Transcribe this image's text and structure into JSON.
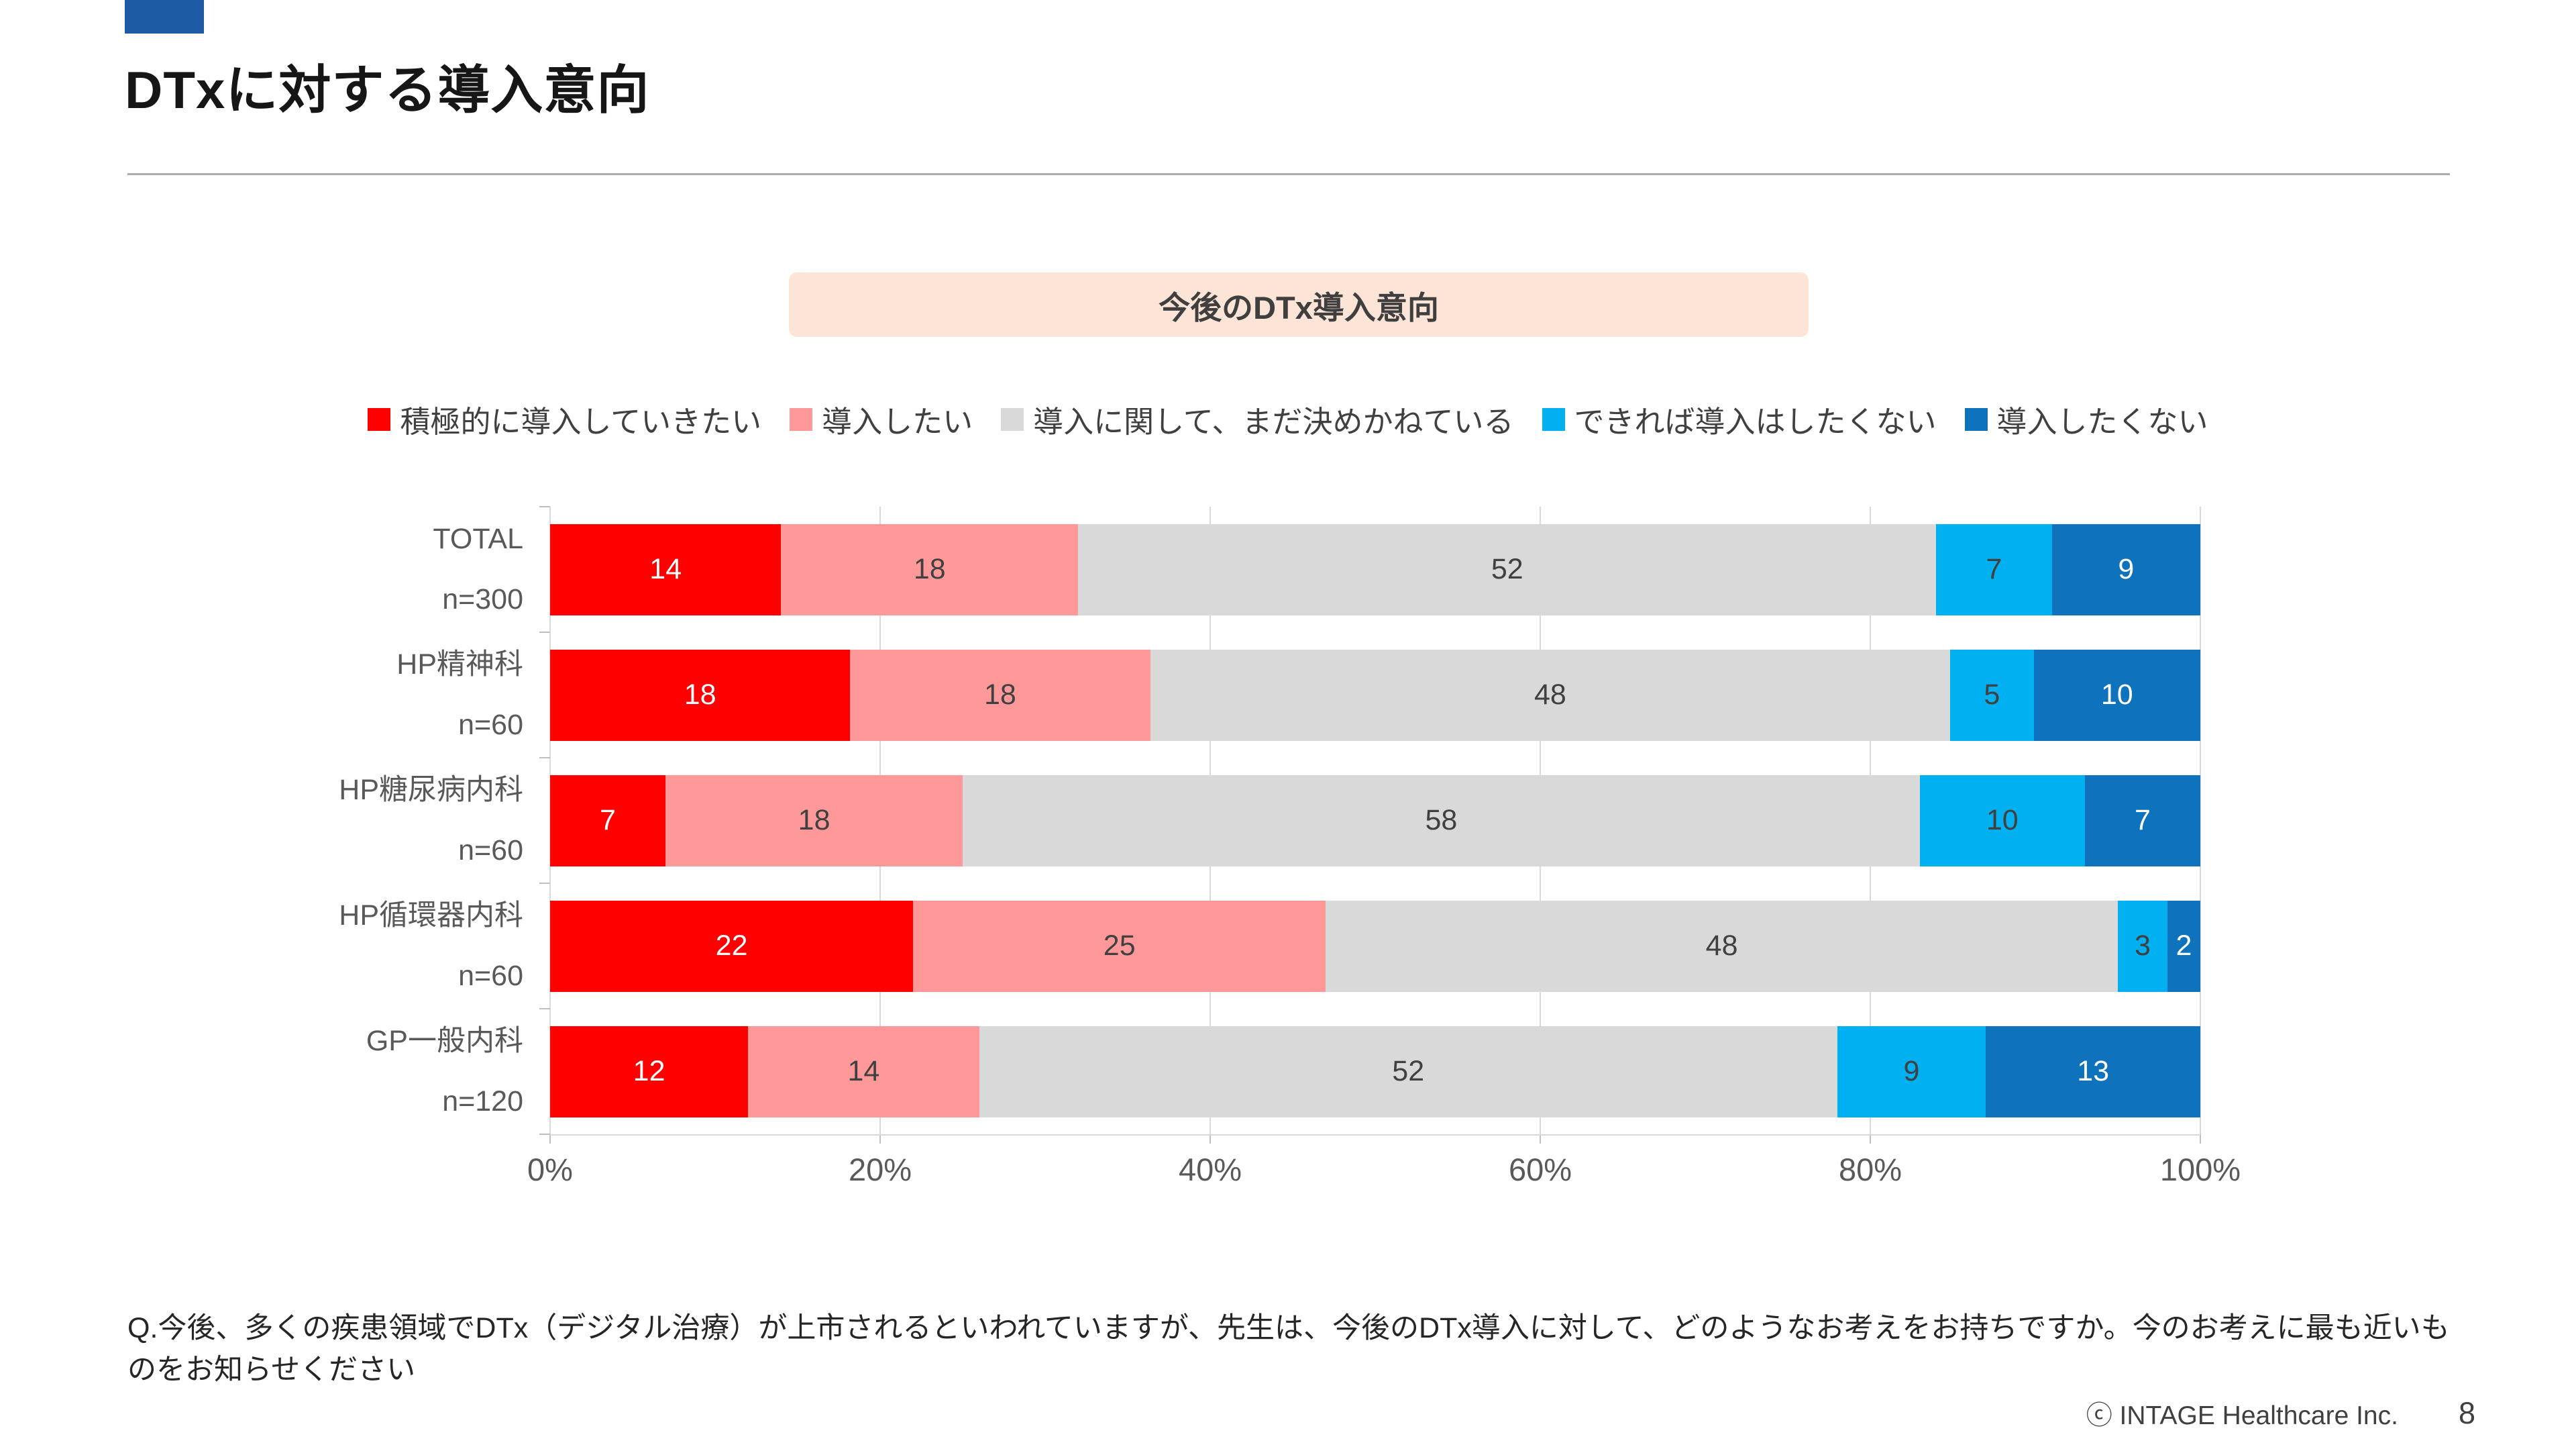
{
  "slide": {
    "title": "DTxに対する導入意向",
    "badge": "今後のDTx導入意向",
    "question": "Q.今後、多くの疾患領域でDTx（デジタル治療）が上市されるといわれていますが、先生は、今後のDTx導入に対して、どのようなお考えをお持ちですか。今のお考えに最も近いものをお知らせください",
    "copyright": "ⓒ INTAGE Healthcare Inc.",
    "page_number": "8"
  },
  "colors": {
    "accent_square": "#1D5BA4",
    "badge_background": "#FCE4D6",
    "gridline": "#D9D9D9",
    "axis_text": "#595959",
    "legend_text": "#404040"
  },
  "chart_data": {
    "type": "bar",
    "orientation": "horizontal",
    "stacked": true,
    "title": "今後のDTx導入意向",
    "xlim": [
      0,
      100
    ],
    "x_tick_labels": [
      "0%",
      "20%",
      "40%",
      "60%",
      "80%",
      "100%"
    ],
    "grid": true,
    "legend_position": "top",
    "categories": [
      {
        "label": "TOTAL",
        "n": "n=300"
      },
      {
        "label": "HP精神科",
        "n": "n=60"
      },
      {
        "label": "HP糖尿病内科",
        "n": "n=60"
      },
      {
        "label": "HP循環器内科",
        "n": "n=60"
      },
      {
        "label": "GP一般内科",
        "n": "n=120"
      }
    ],
    "series": [
      {
        "name": "積極的に導入していきたい",
        "color": "#FF0000",
        "value_label_color": "#FFFFFF",
        "values": [
          14,
          18,
          7,
          22,
          12
        ]
      },
      {
        "name": "導入したい",
        "color": "#FF9999",
        "value_label_color": "#404040",
        "values": [
          18,
          18,
          18,
          25,
          14
        ]
      },
      {
        "name": "導入に関して、まだ決めかねている",
        "color": "#D9D9D9",
        "value_label_color": "#404040",
        "values": [
          52,
          48,
          58,
          48,
          52
        ]
      },
      {
        "name": "できれば導入はしたくない",
        "color": "#00B0F0",
        "value_label_color": "#404040",
        "values": [
          7,
          5,
          10,
          3,
          9
        ]
      },
      {
        "name": "導入したくない",
        "color": "#0F72BC",
        "value_label_color": "#FFFFFF",
        "values": [
          9,
          10,
          7,
          2,
          13
        ]
      }
    ]
  }
}
